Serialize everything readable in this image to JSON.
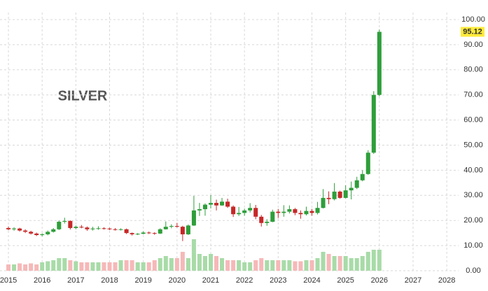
{
  "chart_data": {
    "type": "candlestick",
    "title": "SILVER",
    "x": [
      2015.0,
      2015.1667,
      2015.3333,
      2015.5,
      2015.6667,
      2015.8333,
      2016.0,
      2016.1667,
      2016.3333,
      2016.5,
      2016.6667,
      2016.8333,
      2017.0,
      2017.1667,
      2017.3333,
      2017.5,
      2017.6667,
      2017.8333,
      2018.0,
      2018.1667,
      2018.3333,
      2018.5,
      2018.6667,
      2018.8333,
      2019.0,
      2019.1667,
      2019.3333,
      2019.5,
      2019.6667,
      2019.8333,
      2020.0,
      2020.1667,
      2020.3333,
      2020.5,
      2020.6667,
      2020.8333,
      2021.0,
      2021.1667,
      2021.3333,
      2021.5,
      2021.6667,
      2021.8333,
      2022.0,
      2022.1667,
      2022.3333,
      2022.5,
      2022.6667,
      2022.8333,
      2023.0,
      2023.1667,
      2023.3333,
      2023.5,
      2023.6667,
      2023.8333,
      2024.0,
      2024.1667,
      2024.3333,
      2024.5,
      2024.6667,
      2024.8333,
      2025.0,
      2025.1667,
      2025.3333,
      2025.5,
      2025.6667,
      2025.8333,
      2026.0
    ],
    "open": [
      17.0,
      16.5,
      16.8,
      16.0,
      15.5,
      14.8,
      14.2,
      14.5,
      15.5,
      16.5,
      19.5,
      19.8,
      17.0,
      17.5,
      17.2,
      16.5,
      16.8,
      16.9,
      16.8,
      16.5,
      16.4,
      16.5,
      15.0,
      14.5,
      14.7,
      15.2,
      15.0,
      14.8,
      16.5,
      17.5,
      17.8,
      17.5,
      14.5,
      18.0,
      24.0,
      24.5,
      26.3,
      27.0,
      26.0,
      27.5,
      25.5,
      22.5,
      23.0,
      24.0,
      25.0,
      21.5,
      19.0,
      19.5,
      23.5,
      23.0,
      23.5,
      24.5,
      23.0,
      22.5,
      23.8,
      23.0,
      25.0,
      29.0,
      28.5,
      31.5,
      29.0,
      32.0,
      33.0,
      36.0,
      38.5,
      47.0,
      70.0
    ],
    "high": [
      17.6,
      17.3,
      17.1,
      16.5,
      15.9,
      15.2,
      14.9,
      16.0,
      17.0,
      20.0,
      21.1,
      20.1,
      18.0,
      18.2,
      17.6,
      17.5,
      17.7,
      17.3,
      17.1,
      17.0,
      16.9,
      16.8,
      15.2,
      15.0,
      15.7,
      15.6,
      15.3,
      16.9,
      19.6,
      18.5,
      19.0,
      17.9,
      18.4,
      29.8,
      27.0,
      26.8,
      30.1,
      28.3,
      29.0,
      28.7,
      26.0,
      25.4,
      24.7,
      26.9,
      26.2,
      22.2,
      20.5,
      24.3,
      24.6,
      26.1,
      26.0,
      25.0,
      24.0,
      25.5,
      24.6,
      27.4,
      32.5,
      31.6,
      34.9,
      31.9,
      34.0,
      35.5,
      37.4,
      40.0,
      48.0,
      71.5,
      96.0
    ],
    "low": [
      16.1,
      15.9,
      15.6,
      15.0,
      14.4,
      13.8,
      13.7,
      14.1,
      15.2,
      16.2,
      18.8,
      16.4,
      16.5,
      16.9,
      15.9,
      16.0,
      16.3,
      16.4,
      16.2,
      16.0,
      16.0,
      14.6,
      14.0,
      14.2,
      14.5,
      14.6,
      14.3,
      14.6,
      16.4,
      16.9,
      17.2,
      11.8,
      14.2,
      17.8,
      21.8,
      21.9,
      24.8,
      24.0,
      25.8,
      25.0,
      21.4,
      21.8,
      21.9,
      23.2,
      20.5,
      17.6,
      17.9,
      19.3,
      21.0,
      21.5,
      22.8,
      22.1,
      20.7,
      22.0,
      21.9,
      22.4,
      24.8,
      26.5,
      28.0,
      28.7,
      28.8,
      28.4,
      32.5,
      35.6,
      38.2,
      46.5,
      69.5
    ],
    "close": [
      16.5,
      16.8,
      16.0,
      15.5,
      14.8,
      14.2,
      14.5,
      15.5,
      16.5,
      19.5,
      19.8,
      17.0,
      17.5,
      17.2,
      16.5,
      16.8,
      16.9,
      16.8,
      16.5,
      16.4,
      16.5,
      15.0,
      14.5,
      14.7,
      15.2,
      15.0,
      14.8,
      16.5,
      17.5,
      17.8,
      17.5,
      14.5,
      18.0,
      24.0,
      24.5,
      26.3,
      27.0,
      26.0,
      27.5,
      25.5,
      22.5,
      23.0,
      24.0,
      25.0,
      21.5,
      19.0,
      19.5,
      23.5,
      23.0,
      23.5,
      24.5,
      23.0,
      22.5,
      23.8,
      23.0,
      25.0,
      29.0,
      28.5,
      31.5,
      29.0,
      32.0,
      33.0,
      36.0,
      38.5,
      47.0,
      70.0,
      95.12
    ],
    "volume": [
      3,
      3,
      3.5,
      3,
      3.5,
      3,
      4,
      4.5,
      5,
      6,
      6,
      5,
      4.5,
      4,
      4,
      4,
      4,
      4,
      4,
      4,
      5,
      5,
      5,
      4,
      4,
      4,
      5,
      6,
      7,
      6,
      6,
      9,
      6,
      15,
      8,
      7,
      8,
      7,
      6,
      5,
      5,
      5,
      4,
      4,
      5,
      6,
      5,
      5,
      5,
      5,
      5,
      4.5,
      4.5,
      5,
      5,
      6,
      9,
      8,
      7,
      7,
      7,
      6,
      6,
      7,
      9,
      10,
      10
    ],
    "up_color": "#2e9e3a",
    "down_color": "#c62828",
    "up_volume_color": "#a8dba8",
    "down_volume_color": "#f6b8b8",
    "last_price_color": "#ffeb3b",
    "xlim": [
      2014.75,
      2028.35
    ],
    "xticks": [
      2015,
      2016,
      2017,
      2018,
      2019,
      2020,
      2021,
      2022,
      2023,
      2024,
      2025,
      2026,
      2027,
      2028
    ],
    "ylim": [
      0,
      100
    ],
    "yticks": [
      {
        "value": 0,
        "label": "0.00"
      },
      {
        "value": 10,
        "label": "10.00"
      },
      {
        "value": 20,
        "label": "20.00"
      },
      {
        "value": 30,
        "label": "30.00"
      },
      {
        "value": 40,
        "label": "40.00"
      },
      {
        "value": 50,
        "label": "50.00"
      },
      {
        "value": 60,
        "label": "60.00"
      },
      {
        "value": 70,
        "label": "70.00"
      },
      {
        "value": 80,
        "label": "80.00"
      },
      {
        "value": 90,
        "label": "90.00"
      },
      {
        "value": 100,
        "label": "100.00"
      }
    ],
    "grid": true
  }
}
